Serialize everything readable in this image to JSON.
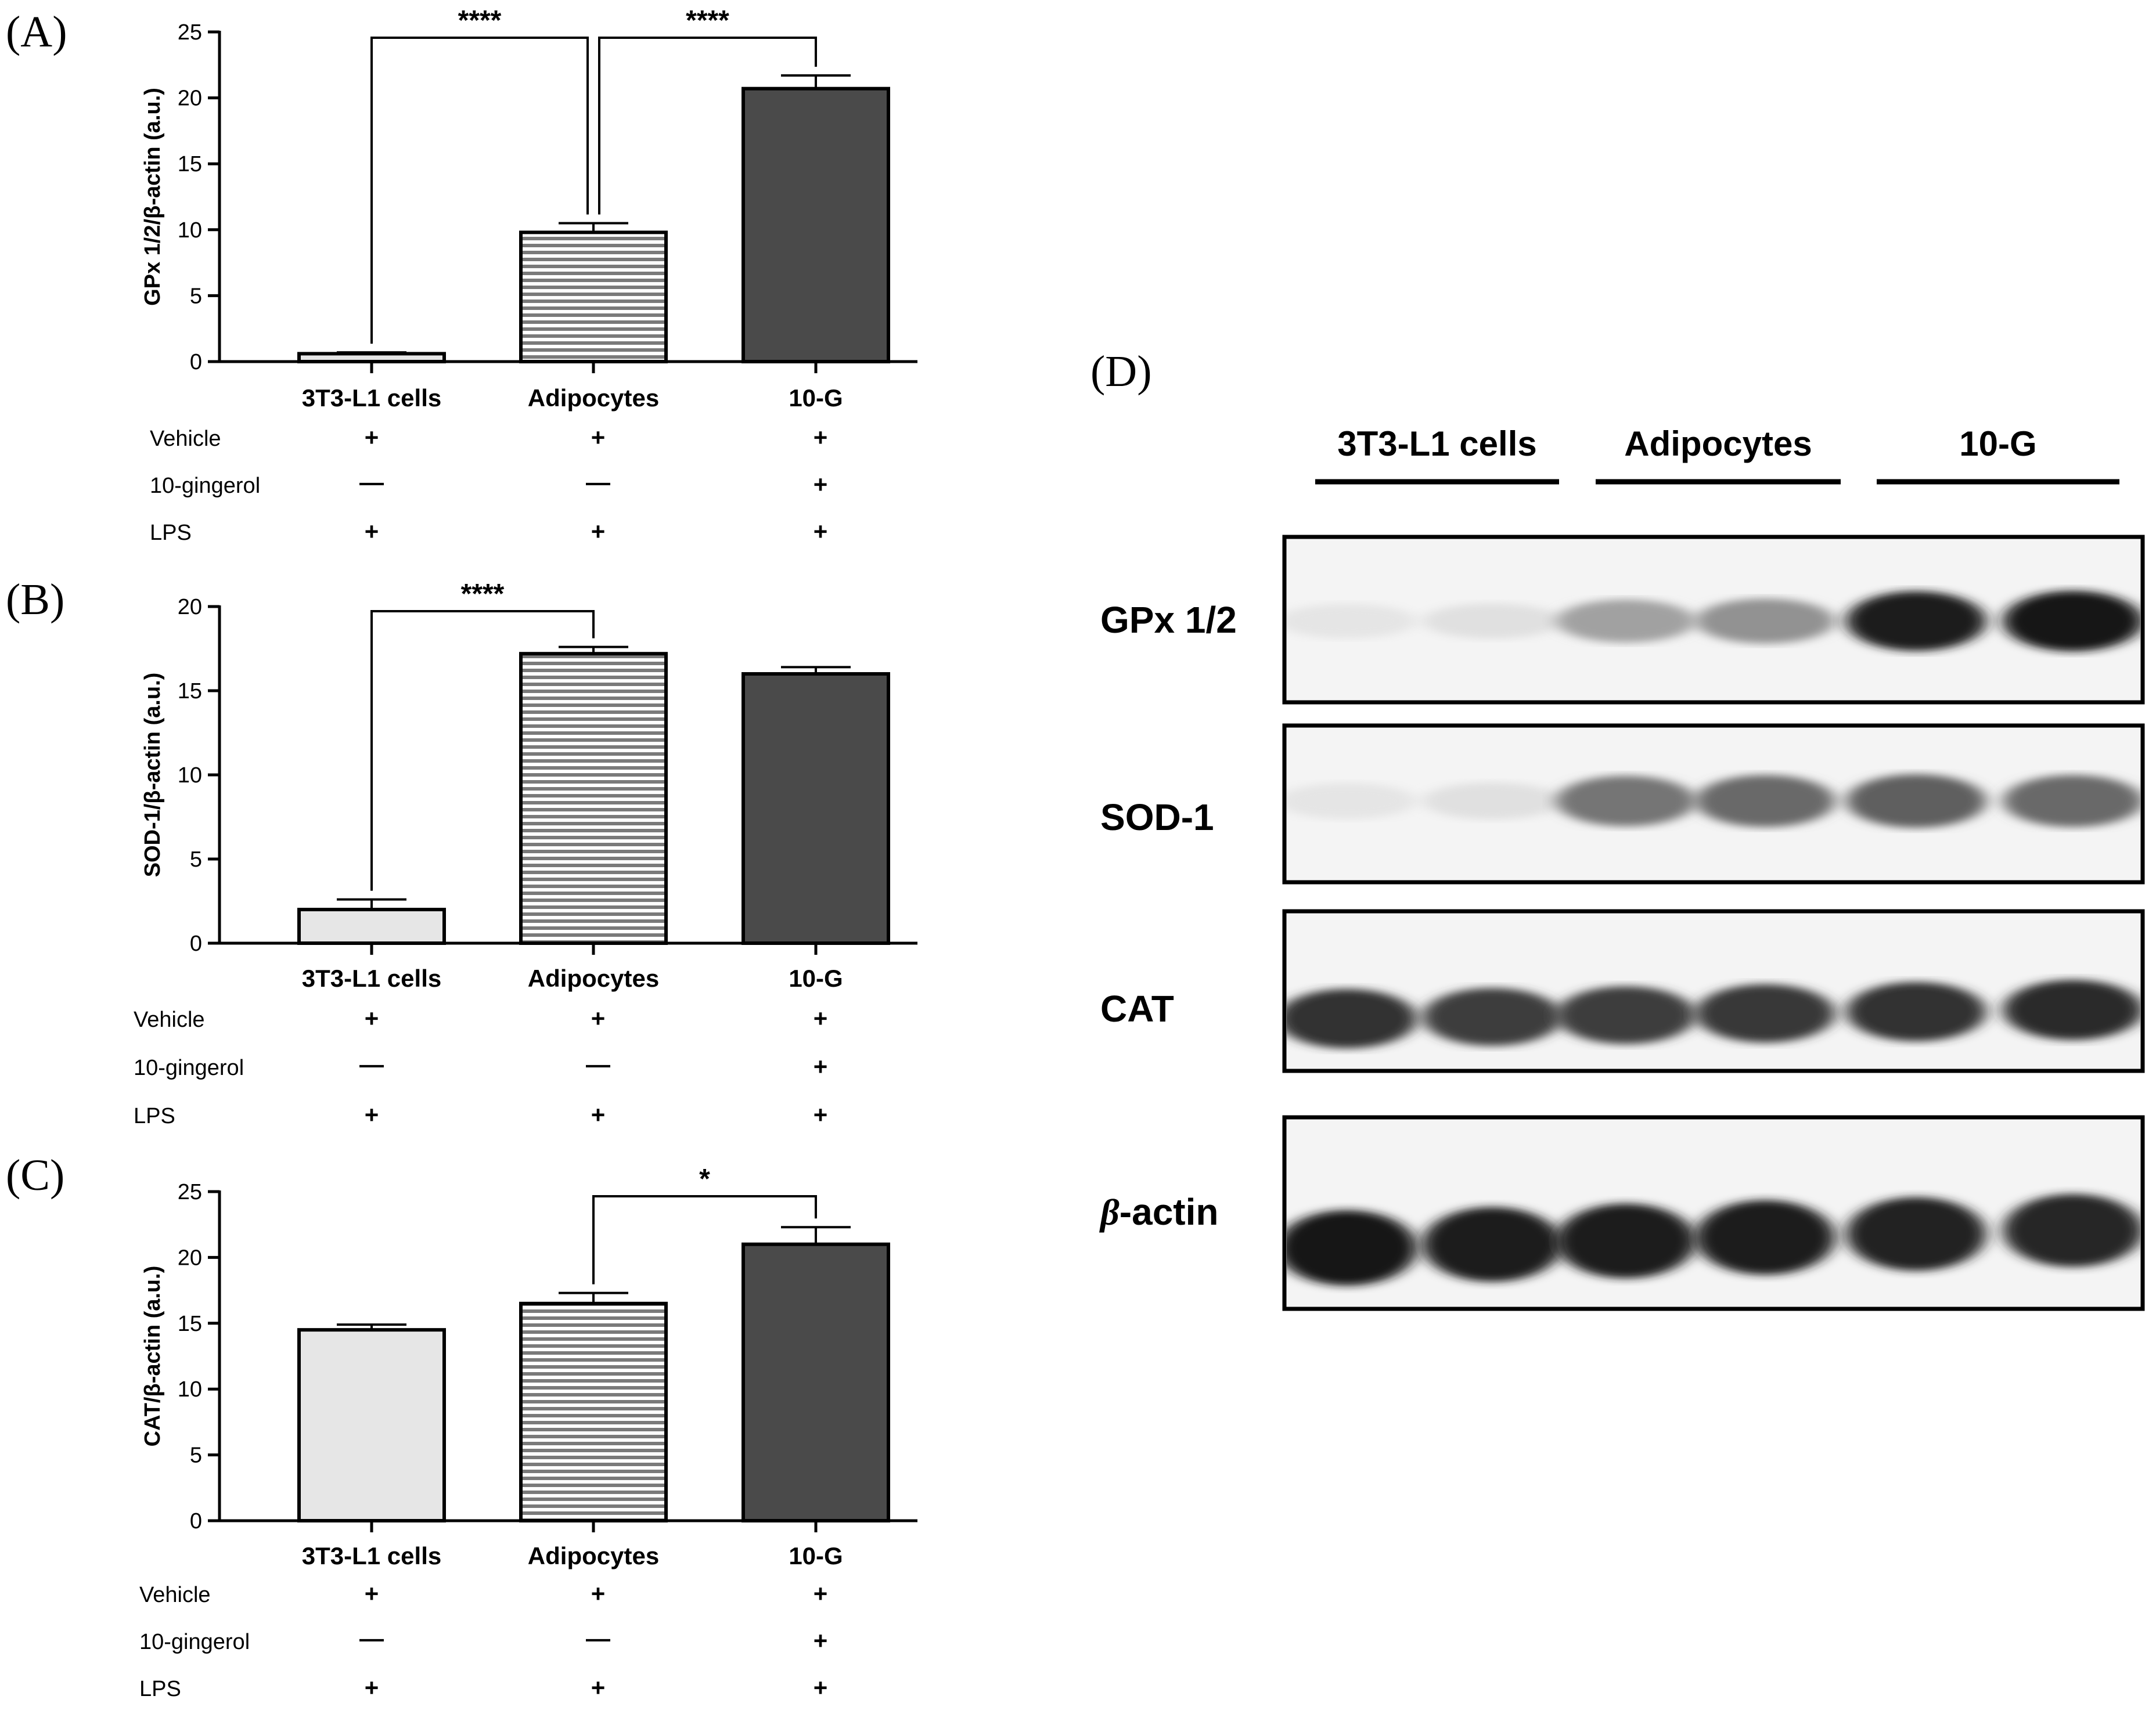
{
  "panels": [
    {
      "letter": "(A)",
      "ylabel": "GPx 1/2/β-actin (a.u.)",
      "treatments": [
        {
          "label": "Vehicle",
          "marks": [
            "+",
            "+",
            "+"
          ]
        },
        {
          "label": "10-gingerol",
          "marks": [
            "—",
            "—",
            "+"
          ]
        },
        {
          "label": "LPS",
          "marks": [
            "+",
            "+",
            "+"
          ]
        }
      ],
      "significance": [
        {
          "from": 0,
          "to": 1,
          "label": "****"
        },
        {
          "from": 1,
          "to": 2,
          "label": "****"
        }
      ]
    },
    {
      "letter": "(B)",
      "ylabel": "SOD-1/β-actin (a.u.)",
      "treatments": [
        {
          "label": "Vehicle",
          "marks": [
            "+",
            "+",
            "+"
          ]
        },
        {
          "label": "10-gingerol",
          "marks": [
            "—",
            "—",
            "+"
          ]
        },
        {
          "label": "LPS",
          "marks": [
            "+",
            "+",
            "+"
          ]
        }
      ],
      "significance": [
        {
          "from": 0,
          "to": 1,
          "label": "****"
        }
      ]
    },
    {
      "letter": "(C)",
      "ylabel": "CAT/β-actin (a.u.)",
      "treatments": [
        {
          "label": "Vehicle",
          "marks": [
            "+",
            "+",
            "+"
          ]
        },
        {
          "label": "10-gingerol",
          "marks": [
            "—",
            "—",
            "+"
          ]
        },
        {
          "label": "LPS",
          "marks": [
            "+",
            "+",
            "+"
          ]
        }
      ],
      "significance": [
        {
          "from": 1,
          "to": 2,
          "label": "*"
        }
      ]
    }
  ],
  "chart_data": [
    {
      "type": "bar",
      "categories": [
        "3T3-L1 cells",
        "Adipocytes",
        "10-G"
      ],
      "values": [
        0.6,
        9.8,
        20.7
      ],
      "errors": [
        0.1,
        0.7,
        1.0
      ],
      "ylabel": "GPx 1/2/β-actin (a.u.)",
      "ylim": [
        0,
        25
      ],
      "yticks": [
        0,
        5,
        10,
        15,
        20,
        25
      ],
      "bar_colors": [
        "#e6e6e6",
        "striped",
        "#4a4a4a"
      ],
      "grid": false
    },
    {
      "type": "bar",
      "categories": [
        "3T3-L1 cells",
        "Adipocytes",
        "10-G"
      ],
      "values": [
        2.0,
        17.2,
        16.0
      ],
      "errors": [
        0.6,
        0.4,
        0.4
      ],
      "ylabel": "SOD-1/β-actin (a.u.)",
      "ylim": [
        0,
        20
      ],
      "yticks": [
        0,
        5,
        10,
        15,
        20
      ],
      "bar_colors": [
        "#e6e6e6",
        "striped",
        "#4a4a4a"
      ],
      "grid": false
    },
    {
      "type": "bar",
      "categories": [
        "3T3-L1 cells",
        "Adipocytes",
        "10-G"
      ],
      "values": [
        14.5,
        16.5,
        21.0
      ],
      "errors": [
        0.4,
        0.8,
        1.3
      ],
      "ylabel": "CAT/β-actin (a.u.)",
      "ylim": [
        0,
        25
      ],
      "yticks": [
        0,
        5,
        10,
        15,
        20,
        25
      ],
      "bar_colors": [
        "#e6e6e6",
        "striped",
        "#4a4a4a"
      ],
      "grid": false
    }
  ],
  "western_blot": {
    "letter": "(D)",
    "groups": [
      "3T3-L1 cells",
      "Adipocytes",
      "10-G"
    ],
    "proteins": [
      {
        "label": "GPx 1/2",
        "intensities": [
          0.05,
          0.07,
          0.35,
          0.42,
          0.95,
          0.98
        ]
      },
      {
        "label": "SOD-1",
        "intensities": [
          0.05,
          0.07,
          0.55,
          0.6,
          0.65,
          0.6
        ]
      },
      {
        "label": "CAT",
        "intensities": [
          0.85,
          0.8,
          0.8,
          0.82,
          0.85,
          0.88
        ]
      },
      {
        "label": "β-actin",
        "intensities": [
          0.97,
          0.95,
          0.95,
          0.95,
          0.92,
          0.9
        ]
      }
    ]
  }
}
